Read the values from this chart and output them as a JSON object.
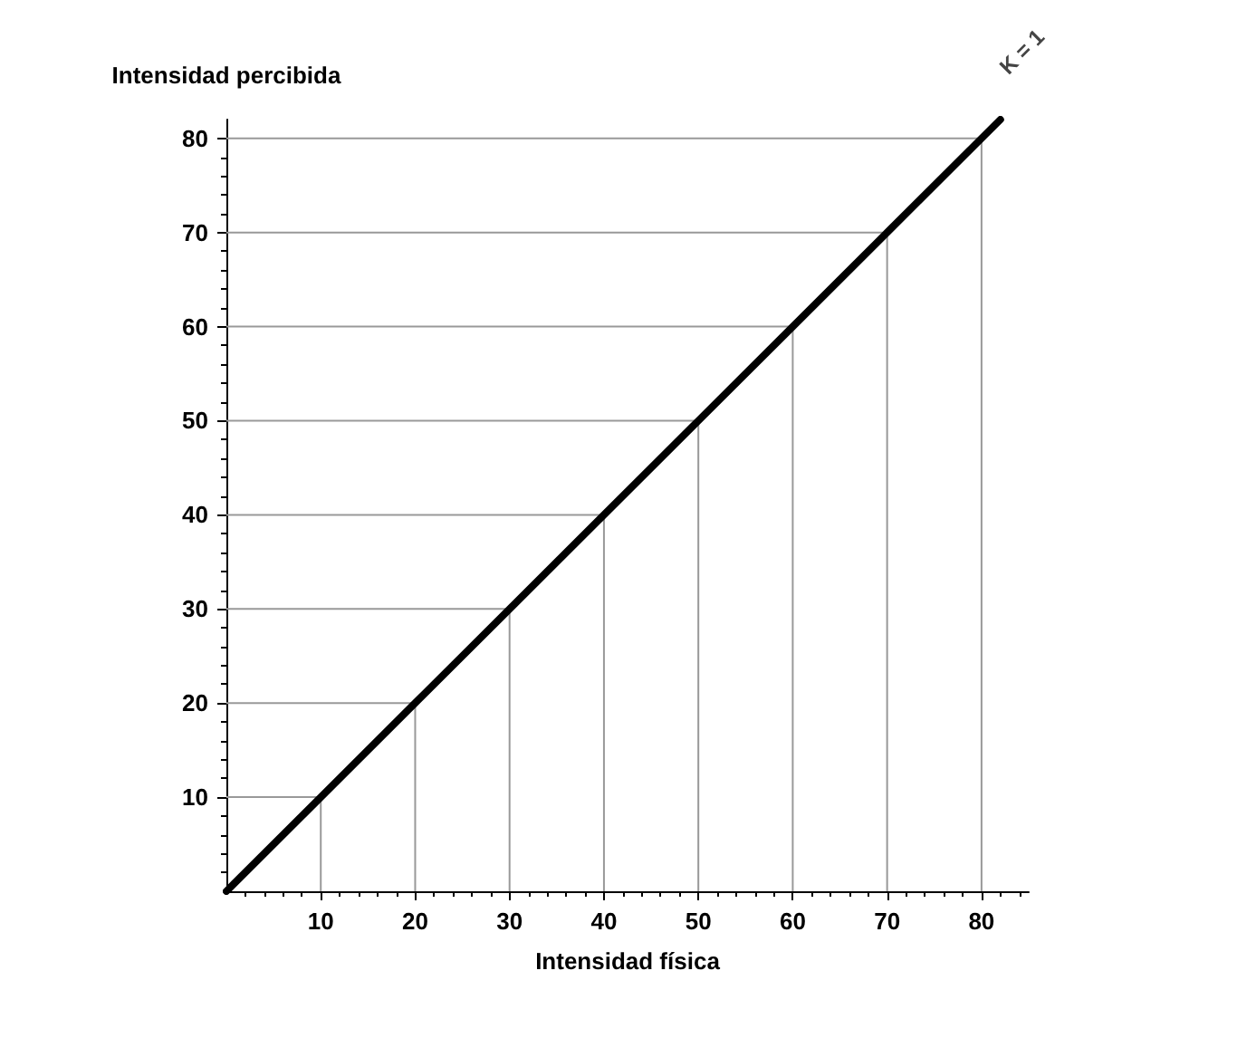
{
  "chart_data": {
    "type": "line",
    "xlabel": "Intensidad física",
    "ylabel": "Intensidad percibida",
    "x": [
      0,
      10,
      20,
      30,
      40,
      50,
      60,
      70,
      80,
      82
    ],
    "series": [
      {
        "color": "#000000",
        "values": [
          0,
          10,
          20,
          30,
          40,
          50,
          60,
          70,
          80,
          82
        ]
      },
      {
        "color": "#999999",
        "x": [
          0,
          10,
          10
        ],
        "values": [
          10,
          10,
          0
        ]
      },
      {
        "color": "#999999",
        "x": [
          0,
          20,
          20
        ],
        "values": [
          20,
          20,
          0
        ]
      },
      {
        "color": "#999999",
        "x": [
          0,
          30,
          30
        ],
        "values": [
          30,
          30,
          0
        ]
      },
      {
        "color": "#999999",
        "x": [
          0,
          40,
          40
        ],
        "values": [
          40,
          40,
          0
        ]
      },
      {
        "color": "#999999",
        "x": [
          0,
          50,
          50
        ],
        "values": [
          50,
          50,
          0
        ]
      },
      {
        "color": "#999999",
        "x": [
          0,
          60,
          60
        ],
        "values": [
          60,
          60,
          0
        ]
      },
      {
        "color": "#999999",
        "x": [
          0,
          70,
          70
        ],
        "values": [
          70,
          70,
          0
        ]
      },
      {
        "color": "#999999",
        "x": [
          0,
          80,
          80
        ],
        "values": [
          80,
          80,
          0
        ]
      }
    ],
    "xlim": [
      0,
      85
    ],
    "ylim": [
      0,
      82
    ],
    "xticks": [
      10,
      20,
      30,
      40,
      50,
      60,
      70,
      80
    ],
    "yticks": [
      10,
      20,
      30,
      40,
      50,
      60,
      70,
      80
    ],
    "annotations": [
      {
        "text": "K = 1",
        "x": 82,
        "y": 82
      }
    ],
    "marker": "none",
    "line_style": "solid"
  }
}
